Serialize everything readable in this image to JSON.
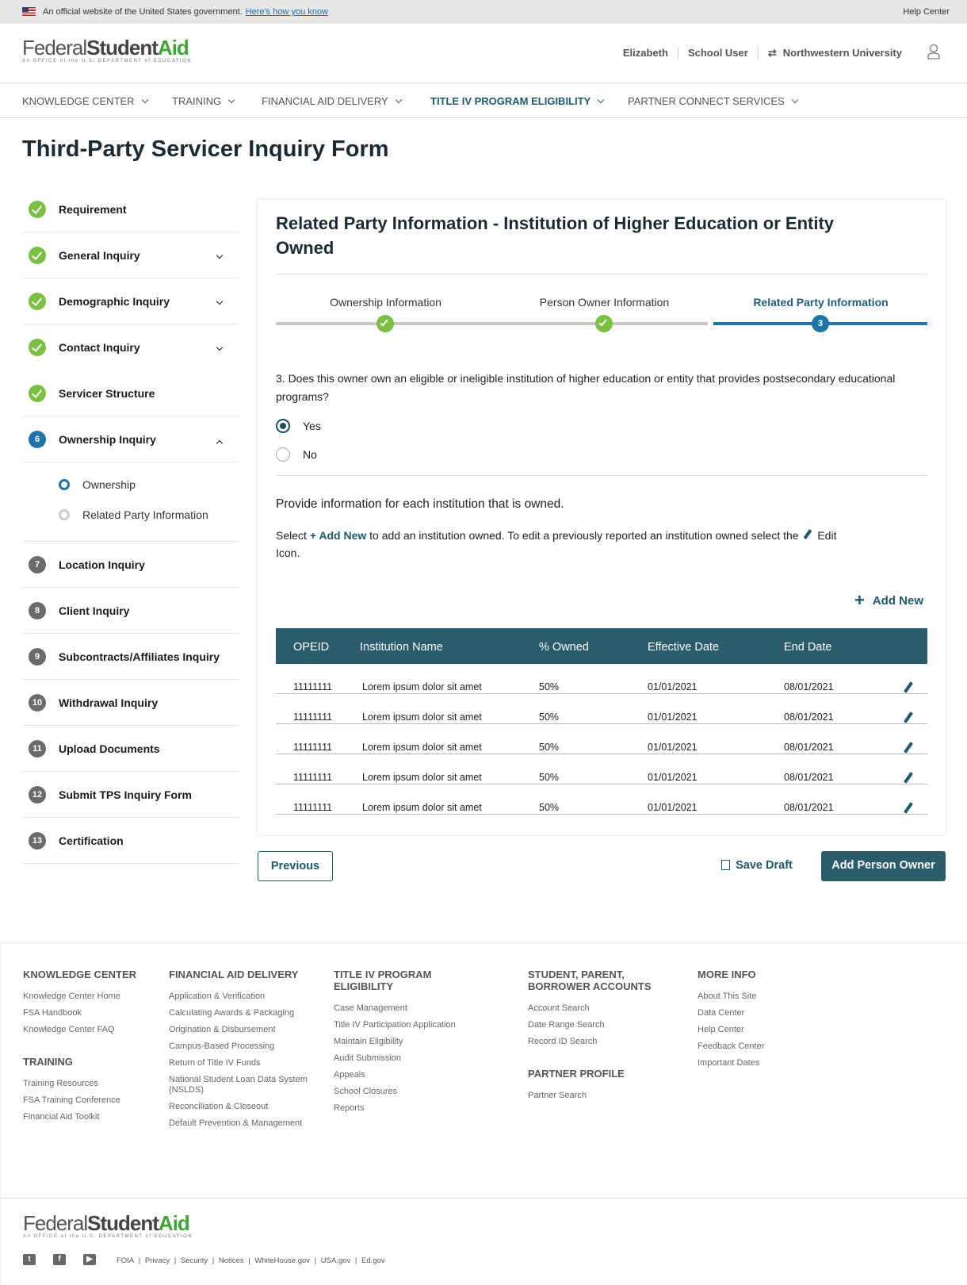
{
  "banner": {
    "text": "An official website of the United States government.",
    "link": "Here's how you know",
    "help": "Help Center"
  },
  "logo": {
    "federal": "Federal",
    "student": "Student",
    "aid": "Aid",
    "tagline": "An OFFICE of the U.S. DEPARTMENT of EDUCATION"
  },
  "user": {
    "name": "Elizabeth",
    "role": "School User",
    "org": "Northwestern University"
  },
  "nav": [
    {
      "label": "KNOWLEDGE CENTER"
    },
    {
      "label": "TRAINING"
    },
    {
      "label": "FINANCIAL AID DELIVERY"
    },
    {
      "label": "TITLE IV PROGRAM ELIGIBILITY",
      "active": true
    },
    {
      "label": "PARTNER CONNECT SERVICES"
    }
  ],
  "page_title": "Third-Party Servicer Inquiry Form",
  "sidebar": [
    {
      "label": "Requirement",
      "status": "done"
    },
    {
      "label": "General Inquiry",
      "status": "done",
      "chevron": "down"
    },
    {
      "label": "Demographic Inquiry",
      "status": "done",
      "chevron": "down"
    },
    {
      "label": "Contact Inquiry",
      "status": "done",
      "chevron": "down"
    },
    {
      "label": "Servicer Structure",
      "status": "done"
    },
    {
      "label": "Ownership Inquiry",
      "status": "current",
      "num": "6",
      "chevron": "up"
    },
    {
      "label": "Location Inquiry",
      "status": "todo",
      "num": "7"
    },
    {
      "label": "Client Inquiry",
      "status": "todo",
      "num": "8"
    },
    {
      "label": "Subcontracts/Affiliates Inquiry",
      "status": "todo",
      "num": "9"
    },
    {
      "label": "Withdrawal Inquiry",
      "status": "todo",
      "num": "10"
    },
    {
      "label": "Upload Documents",
      "status": "todo",
      "num": "11"
    },
    {
      "label": "Submit TPS Inquiry Form",
      "status": "todo",
      "num": "12"
    },
    {
      "label": "Certification",
      "status": "todo",
      "num": "13"
    }
  ],
  "sidebar_sub": [
    {
      "label": "Ownership",
      "active": true
    },
    {
      "label": "Related Party Information",
      "active": false
    }
  ],
  "card": {
    "title": "Related Party Information - Institution of Higher Education or Entity Owned",
    "steps": [
      {
        "label": "Ownership Information",
        "status": "done"
      },
      {
        "label": "Person Owner Information",
        "status": "done"
      },
      {
        "label": "Related Party Information",
        "status": "current",
        "num": "3"
      }
    ],
    "question": "3. Does this owner own an eligible or ineligible institution of higher education or entity that provides postsecondary educational programs?",
    "options": [
      {
        "label": "Yes",
        "selected": true
      },
      {
        "label": "No",
        "selected": false
      }
    ],
    "provide": "Provide information for each institution that is owned.",
    "select_pre": "Select ",
    "select_link": "+ Add New",
    "select_mid": " to add an institution owned. To edit a previously reported an institution owned select the ",
    "select_post": " Edit Icon.",
    "add_new": "Add New",
    "columns": [
      "OPEID",
      "Institution Name",
      "% Owned",
      "Effective  Date",
      "End Date"
    ],
    "rows": [
      [
        "11111111",
        "Lorem ipsum dolor sit amet",
        "50%",
        "01/01/2021",
        "08/01/2021"
      ],
      [
        "11111111",
        "Lorem ipsum dolor sit amet",
        "50%",
        "01/01/2021",
        "08/01/2021"
      ],
      [
        "11111111",
        "Lorem ipsum dolor sit amet",
        "50%",
        "01/01/2021",
        "08/01/2021"
      ],
      [
        "11111111",
        "Lorem ipsum dolor sit amet",
        "50%",
        "01/01/2021",
        "08/01/2021"
      ],
      [
        "11111111",
        "Lorem ipsum dolor sit amet",
        "50%",
        "01/01/2021",
        "08/01/2021"
      ]
    ]
  },
  "buttons": {
    "previous": "Previous",
    "save_draft": "Save Draft",
    "add_person_owner": "Add Person Owner"
  },
  "footer": {
    "columns": [
      {
        "groups": [
          {
            "title": "KNOWLEDGE CENTER",
            "links": [
              "Knowledge Center Home",
              "FSA Handbook",
              "Knowledge Center FAQ"
            ]
          },
          {
            "title": "TRAINING",
            "links": [
              "Training Resources",
              "FSA Training Conference",
              "Financial Aid Toolkit"
            ]
          }
        ]
      },
      {
        "groups": [
          {
            "title": "FINANCIAL AID DELIVERY",
            "links": [
              "Application & Verification",
              "Calculating Awards & Packaging",
              "Origination & Disbursement",
              "Campus-Based Processing",
              "Return of Title IV Funds",
              "National Student Loan Data System (NSLDS)",
              "Reconciliation & Closeout",
              "Default Prevention & Management"
            ]
          }
        ]
      },
      {
        "groups": [
          {
            "title": "TITLE IV PROGRAM ELIGIBILITY",
            "links": [
              "Case Management",
              "Title IV Participation Application",
              "Maintain Eligibility",
              "Audit Submission",
              "Appeals",
              "School Closures",
              "Reports"
            ]
          }
        ]
      },
      {
        "groups": [
          {
            "title": "STUDENT, PARENT, BORROWER ACCOUNTS",
            "links": [
              "Account Search",
              "Date Range Search",
              "Record ID Search"
            ]
          },
          {
            "title": "PARTNER PROFILE",
            "links": [
              "Partner Search"
            ]
          }
        ]
      },
      {
        "groups": [
          {
            "title": "MORE INFO",
            "links": [
              "About This Site",
              "Data Center",
              "Help Center",
              "Feedback Center",
              "Important Dates"
            ]
          }
        ]
      }
    ],
    "bottom_links": [
      "FOIA",
      "Privacy",
      "Security",
      "Notices",
      "WhiteHouse.gov",
      "USA.gov",
      "Ed.gov"
    ],
    "social": [
      "twitter-icon",
      "facebook-icon",
      "youtube-icon"
    ]
  },
  "colors": {
    "primary": "#2a5c6b",
    "done": "#7ac143",
    "current": "#1f75a8"
  }
}
